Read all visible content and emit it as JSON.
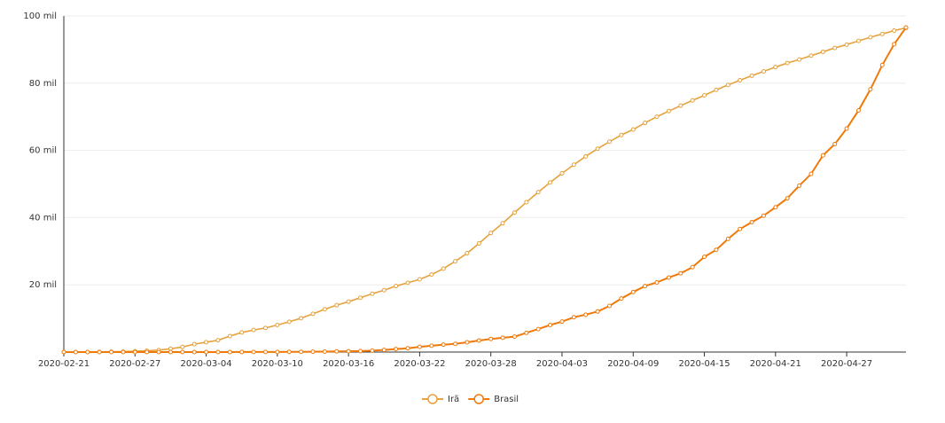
{
  "chart_data": {
    "type": "line",
    "categories": [
      "2020-02-21",
      null,
      null,
      null,
      null,
      null,
      "2020-02-27",
      null,
      null,
      null,
      null,
      null,
      "2020-03-04",
      null,
      null,
      null,
      null,
      null,
      "2020-03-10",
      null,
      null,
      null,
      null,
      null,
      "2020-03-16",
      null,
      null,
      null,
      null,
      null,
      "2020-03-22",
      null,
      null,
      null,
      null,
      null,
      "2020-03-28",
      null,
      null,
      null,
      null,
      null,
      "2020-04-03",
      null,
      null,
      null,
      null,
      null,
      "2020-04-09",
      null,
      null,
      null,
      null,
      null,
      "2020-04-15",
      null,
      null,
      null,
      null,
      null,
      "2020-04-21",
      null,
      null,
      null,
      null,
      null,
      "2020-04-27",
      null,
      null,
      null,
      null,
      null
    ],
    "series": [
      {
        "name": "Irã",
        "color": "#e6a23c",
        "values": [
          18,
          28,
          43,
          61,
          95,
          139,
          245,
          388,
          593,
          978,
          1501,
          2336,
          2922,
          3513,
          4747,
          5823,
          6566,
          7161,
          8042,
          9000,
          10075,
          11364,
          12729,
          13938,
          14991,
          16169,
          17361,
          18407,
          19644,
          20610,
          21638,
          23049,
          24811,
          27017,
          29406,
          32332,
          35408,
          38309,
          41495,
          44605,
          47593,
          50468,
          53183,
          55743,
          58226,
          60500,
          62589,
          64586,
          66220,
          68192,
          70029,
          71686,
          73303,
          74877,
          76389,
          77995,
          79494,
          80868,
          82211,
          83505,
          84802,
          85996,
          87026,
          88194,
          89328,
          90481,
          91472,
          92584,
          93657,
          94640,
          95646,
          96448
        ]
      },
      {
        "name": "Brasil",
        "color": "#ef7a0a",
        "values": [
          0,
          0,
          0,
          0,
          0,
          1,
          1,
          1,
          2,
          2,
          2,
          2,
          4,
          8,
          13,
          19,
          25,
          25,
          34,
          52,
          77,
          98,
          121,
          200,
          234,
          291,
          428,
          621,
          904,
          1128,
          1546,
          1891,
          2201,
          2433,
          2915,
          3417,
          3904,
          4256,
          4579,
          5717,
          6836,
          8044,
          9056,
          10360,
          11130,
          12056,
          13717,
          15927,
          17857,
          19638,
          20727,
          22169,
          23430,
          25262,
          28320,
          30425,
          33682,
          36599,
          38654,
          40581,
          43079,
          45757,
          49492,
          52995,
          58509,
          61888,
          66501,
          71886,
          78162,
          85380,
          91589,
          96559
        ]
      }
    ],
    "ylim": [
      0,
      100000
    ],
    "yticks": [
      {
        "value": 20000,
        "label": "20 mil"
      },
      {
        "value": 40000,
        "label": "40 mil"
      },
      {
        "value": 60000,
        "label": "60 mil"
      },
      {
        "value": 80000,
        "label": "80 mil"
      },
      {
        "value": 100000,
        "label": "100 mil"
      }
    ],
    "grid": true,
    "legend": "bottom"
  }
}
